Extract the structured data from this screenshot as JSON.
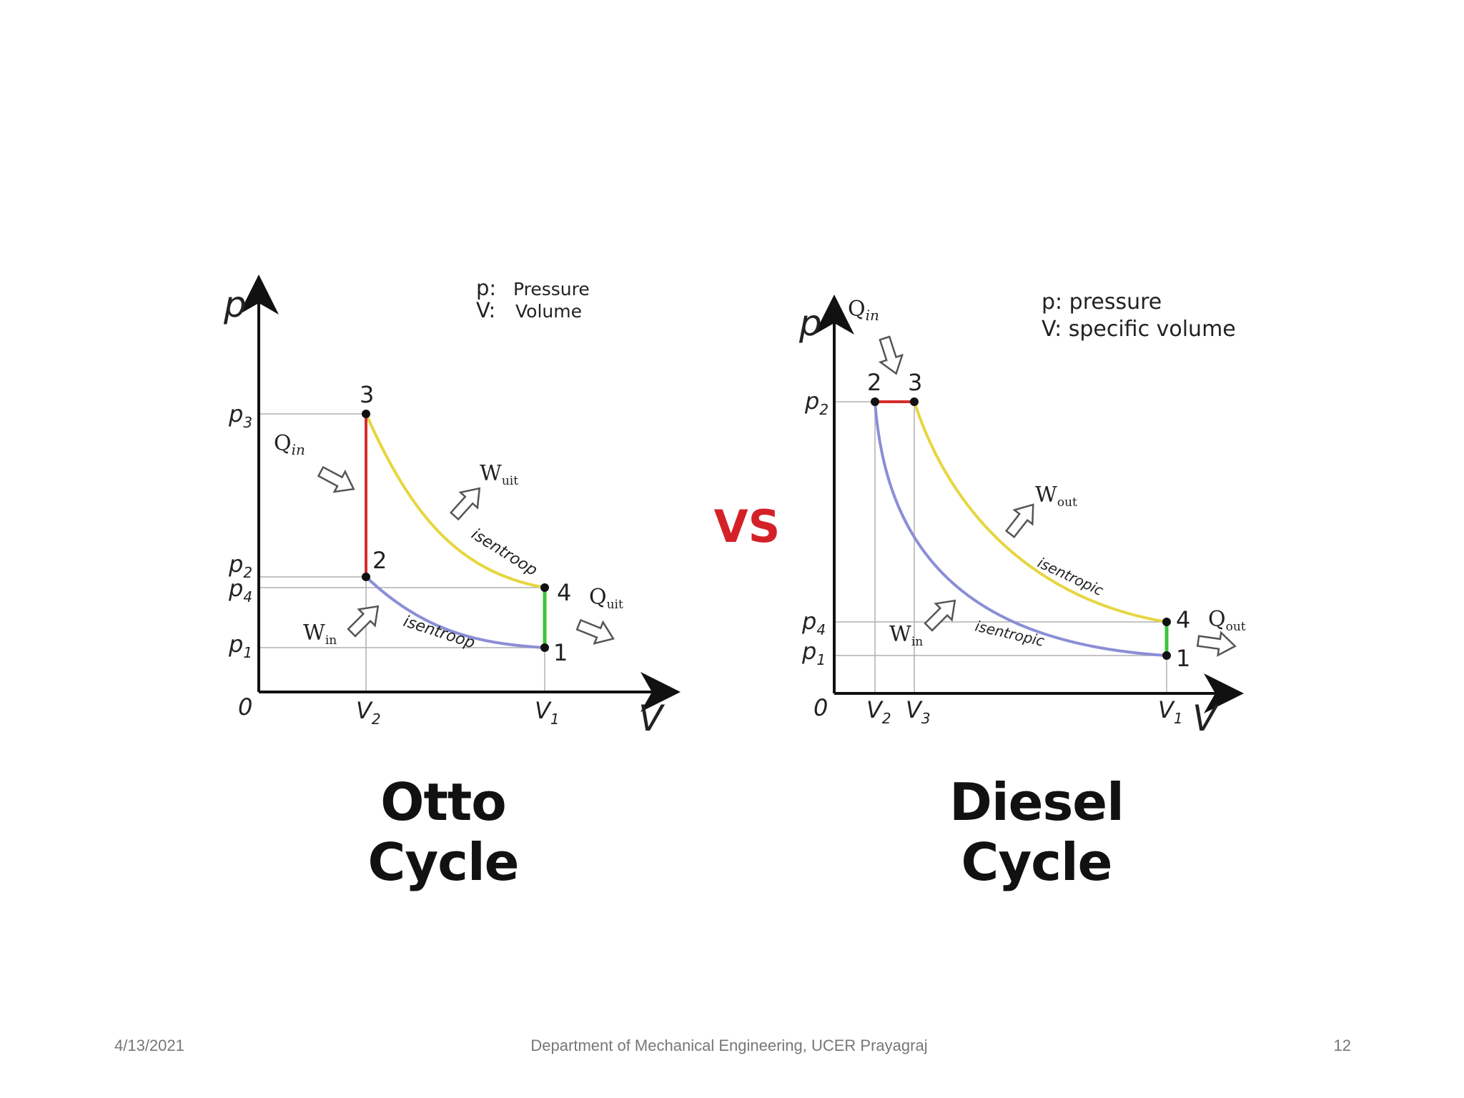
{
  "otto": {
    "title": "Otto Cycle",
    "legend": {
      "p_key": "p:",
      "p_text": "Pressure",
      "v_key": "V:",
      "v_text": "Volume"
    },
    "axis": {
      "y": "p",
      "x": "V",
      "origin": "0"
    },
    "ticks": {
      "p3": "p",
      "p3_sub": "3",
      "p2": "p",
      "p2_sub": "2",
      "p4": "p",
      "p4_sub": "4",
      "p1": "p",
      "p1_sub": "1",
      "v2": "V",
      "v2_sub": "2",
      "v1": "V",
      "v1_sub": "1"
    },
    "points": {
      "pt1": "1",
      "pt2": "2",
      "pt3": "3",
      "pt4": "4"
    },
    "labels": {
      "qin": "Q",
      "qin_sub": "in",
      "wuit": "W",
      "wuit_sub": "uit",
      "win": "W",
      "win_sub": "in",
      "quit": "Q",
      "quit_sub": "uit",
      "isen_top": "isentroop",
      "isen_bottom": "isentroop"
    }
  },
  "diesel": {
    "title": "Diesel Cycle",
    "legend": {
      "p_line": "p: pressure",
      "v_line": "V: specific volume"
    },
    "axis": {
      "y": "p",
      "x": "V",
      "origin": "0"
    },
    "ticks": {
      "p2": "p",
      "p2_sub": "2",
      "p4": "p",
      "p4_sub": "4",
      "p1": "p",
      "p1_sub": "1",
      "v2": "V",
      "v2_sub": "2",
      "v3": "V",
      "v3_sub": "3",
      "v1": "V",
      "v1_sub": "1"
    },
    "points": {
      "pt1": "1",
      "pt2": "2",
      "pt3": "3",
      "pt4": "4"
    },
    "labels": {
      "qin": "Q",
      "qin_sub": "in",
      "wout": "W",
      "wout_sub": "out",
      "win": "W",
      "win_sub": "in",
      "qout": "Q",
      "qout_sub": "out",
      "isen_top": "isentropic",
      "isen_bottom": "isentropic"
    }
  },
  "vs": "VS",
  "footer": {
    "date": "4/13/2021",
    "department": "Department of Mechanical Engineering, UCER Prayagraj",
    "page": "12"
  },
  "colors": {
    "heat_add": "#d62c2c",
    "expansion": "#e6d640",
    "compression": "#8b8ed6",
    "heat_reject": "#3cc43c",
    "vs": "#d42128"
  }
}
